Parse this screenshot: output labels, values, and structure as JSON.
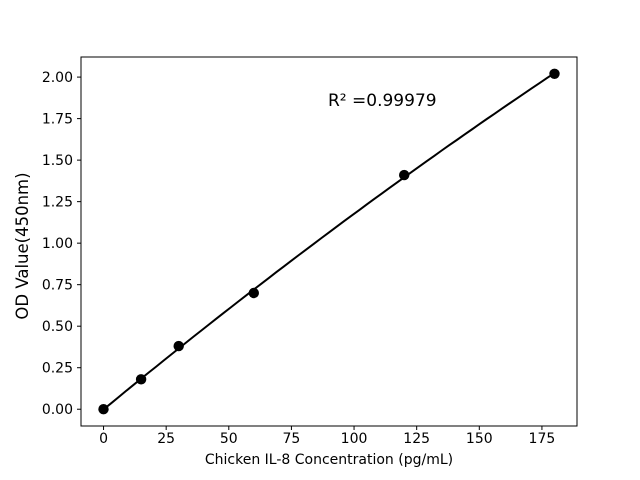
{
  "chart_data": {
    "type": "scatter",
    "title": "",
    "x": [
      0,
      15,
      30,
      60,
      120,
      180
    ],
    "y": [
      0.0,
      0.18,
      0.38,
      0.7,
      1.41,
      2.02
    ],
    "fit": "quadratic",
    "annotation": "R² =0.99979",
    "xlabel": "Chicken IL-8 Concentration (pg/mL)",
    "ylabel": "OD Value(450nm)",
    "x_tick_values": [
      0,
      25,
      50,
      75,
      100,
      125,
      150,
      175
    ],
    "x_tick_labels": [
      "0",
      "25",
      "50",
      "75",
      "100",
      "125",
      "150",
      "175"
    ],
    "y_tick_values": [
      0.0,
      0.25,
      0.5,
      0.75,
      1.0,
      1.25,
      1.5,
      1.75,
      2.0
    ],
    "y_tick_labels": [
      "0.00",
      "0.25",
      "0.50",
      "0.75",
      "1.00",
      "1.25",
      "1.50",
      "1.75",
      "2.00"
    ],
    "xlim": [
      -9,
      189
    ],
    "ylim": [
      -0.101,
      2.121
    ],
    "grid": false,
    "legend": "none",
    "line_color": "#000000",
    "marker_color": "#000000",
    "background_color": "#ffffff"
  }
}
